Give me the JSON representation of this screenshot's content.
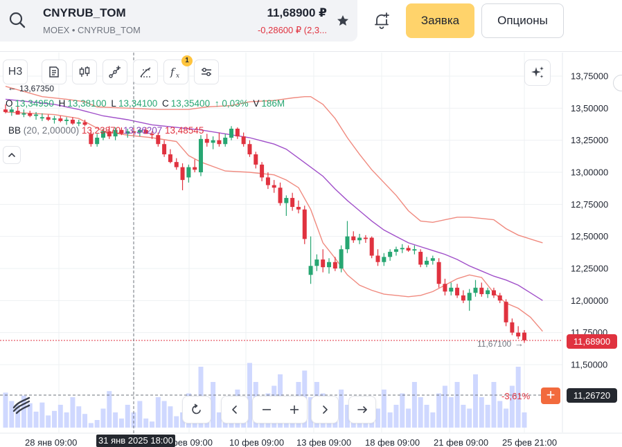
{
  "header": {
    "symbol": "CNYRUB_TOM",
    "exchange": "MOEX • CNYRUB_TOM",
    "price": "11,68900 ₽",
    "change": "-0,28600 ₽ (2,3...",
    "order_label": "Заявка",
    "options_label": "Опционы",
    "icons": [
      "search-icon",
      "star-icon",
      "bell-plus-icon"
    ]
  },
  "toolbar": {
    "interval_label": "Н3",
    "indicator_badge": "1",
    "icons": [
      "chart-type-icon",
      "candles-icon",
      "line-tool-icon",
      "fib-tool-icon",
      "fx-icon",
      "settings-sliders-icon",
      "sparkle-icon"
    ]
  },
  "legend": {
    "open_label": "O",
    "open": "13,34950",
    "high_label": "H",
    "high": "13,38100",
    "low_label": "L",
    "low": "13,34100",
    "close_label": "C",
    "close": "13,35400",
    "change": "↑ 0,03%",
    "volume_label": "V",
    "volume": "186M",
    "bb_name": "BB",
    "bb_params": "(20, 2,00000)",
    "bb_lower": "13,23870",
    "bb_middle": "13,36207",
    "bb_upper": "13,48545"
  },
  "price_axis": {
    "labels": [
      "13,75000",
      "13,50000",
      "13,25000",
      "13,00000",
      "12,75000",
      "12,50000",
      "12,25000",
      "12,00000",
      "11,75000",
      "11,50000"
    ],
    "last_price": "11,68900",
    "crosshair_price": "11,26720",
    "high_marker": "13,67350",
    "reference_price": "11,67100",
    "change_pct": "-3,61%"
  },
  "time_axis": {
    "labels": [
      "28 янв 09:00",
      "фев 09:00",
      "10 фев 09:00",
      "13 фев 09:00",
      "18 фев 09:00",
      "21 фев 09:00",
      "25 фев 21:00"
    ],
    "crosshair_time": "31 янв 2025 18:00"
  },
  "colors": {
    "up": "#27a672",
    "down": "#e0323f",
    "bb_band": "#f08a7f",
    "bb_mid": "#a04fc9",
    "volume": "#cfd8ff",
    "accent": "#ffd36b"
  },
  "chart_data": {
    "type": "candlestick",
    "ylim": [
      11.25,
      13.85
    ],
    "candles": [
      {
        "o": 13.49,
        "h": 13.53,
        "l": 13.46,
        "c": 13.47
      },
      {
        "o": 13.47,
        "h": 13.51,
        "l": 13.44,
        "c": 13.49
      },
      {
        "o": 13.48,
        "h": 13.52,
        "l": 13.45,
        "c": 13.45
      },
      {
        "o": 13.45,
        "h": 13.49,
        "l": 13.43,
        "c": 13.46
      },
      {
        "o": 13.46,
        "h": 13.48,
        "l": 13.43,
        "c": 13.44
      },
      {
        "o": 13.44,
        "h": 13.47,
        "l": 13.41,
        "c": 13.45
      },
      {
        "o": 13.42,
        "h": 13.46,
        "l": 13.4,
        "c": 13.43
      },
      {
        "o": 13.43,
        "h": 13.45,
        "l": 13.4,
        "c": 13.41
      },
      {
        "o": 13.41,
        "h": 13.44,
        "l": 13.38,
        "c": 13.42
      },
      {
        "o": 13.42,
        "h": 13.44,
        "l": 13.39,
        "c": 13.4
      },
      {
        "o": 13.4,
        "h": 13.43,
        "l": 13.37,
        "c": 13.41
      },
      {
        "o": 13.41,
        "h": 13.43,
        "l": 13.37,
        "c": 13.38
      },
      {
        "o": 13.38,
        "h": 13.41,
        "l": 13.36,
        "c": 13.39
      },
      {
        "o": 13.39,
        "h": 13.41,
        "l": 13.36,
        "c": 13.37
      },
      {
        "o": 13.3,
        "h": 13.33,
        "l": 13.2,
        "c": 13.22
      },
      {
        "o": 13.22,
        "h": 13.3,
        "l": 13.2,
        "c": 13.27
      },
      {
        "o": 13.27,
        "h": 13.34,
        "l": 13.25,
        "c": 13.32
      },
      {
        "o": 13.32,
        "h": 13.36,
        "l": 13.26,
        "c": 13.28
      },
      {
        "o": 13.28,
        "h": 13.35,
        "l": 13.25,
        "c": 13.33
      },
      {
        "o": 13.33,
        "h": 13.35,
        "l": 13.29,
        "c": 13.3
      },
      {
        "o": 13.3,
        "h": 13.34,
        "l": 13.27,
        "c": 13.32
      },
      {
        "o": 13.32,
        "h": 13.35,
        "l": 13.29,
        "c": 13.31
      },
      {
        "o": 13.31,
        "h": 13.34,
        "l": 13.28,
        "c": 13.33
      },
      {
        "o": 13.33,
        "h": 13.35,
        "l": 13.3,
        "c": 13.3
      },
      {
        "o": 13.3,
        "h": 13.32,
        "l": 13.26,
        "c": 13.29
      },
      {
        "o": 13.29,
        "h": 13.31,
        "l": 13.2,
        "c": 13.22
      },
      {
        "o": 13.22,
        "h": 13.25,
        "l": 13.12,
        "c": 13.14
      },
      {
        "o": 13.14,
        "h": 13.18,
        "l": 13.07,
        "c": 13.08
      },
      {
        "o": 13.08,
        "h": 13.11,
        "l": 13.02,
        "c": 13.04
      },
      {
        "o": 13.04,
        "h": 13.07,
        "l": 12.86,
        "c": 12.94
      },
      {
        "o": 12.96,
        "h": 13.06,
        "l": 12.92,
        "c": 13.04
      },
      {
        "o": 13.04,
        "h": 13.1,
        "l": 13.0,
        "c": 13.02
      },
      {
        "o": 13.0,
        "h": 13.29,
        "l": 12.97,
        "c": 13.26
      },
      {
        "o": 13.26,
        "h": 13.3,
        "l": 13.2,
        "c": 13.23
      },
      {
        "o": 13.23,
        "h": 13.28,
        "l": 13.18,
        "c": 13.25
      },
      {
        "o": 13.25,
        "h": 13.31,
        "l": 13.2,
        "c": 13.22
      },
      {
        "o": 13.22,
        "h": 13.3,
        "l": 13.2,
        "c": 13.27
      },
      {
        "o": 13.27,
        "h": 13.36,
        "l": 13.25,
        "c": 13.34
      },
      {
        "o": 13.34,
        "h": 13.35,
        "l": 13.26,
        "c": 13.28
      },
      {
        "o": 13.28,
        "h": 13.31,
        "l": 13.2,
        "c": 13.22
      },
      {
        "o": 13.22,
        "h": 13.25,
        "l": 13.12,
        "c": 13.14
      },
      {
        "o": 13.14,
        "h": 13.16,
        "l": 13.03,
        "c": 13.06
      },
      {
        "o": 13.06,
        "h": 13.08,
        "l": 12.93,
        "c": 12.96
      },
      {
        "o": 12.96,
        "h": 13.0,
        "l": 12.87,
        "c": 12.9
      },
      {
        "o": 12.9,
        "h": 12.94,
        "l": 12.84,
        "c": 12.88
      },
      {
        "o": 12.88,
        "h": 12.92,
        "l": 12.74,
        "c": 12.76
      },
      {
        "o": 12.76,
        "h": 12.82,
        "l": 12.66,
        "c": 12.8
      },
      {
        "o": 12.8,
        "h": 12.84,
        "l": 12.7,
        "c": 12.73
      },
      {
        "o": 12.73,
        "h": 12.78,
        "l": 12.68,
        "c": 12.71
      },
      {
        "o": 12.71,
        "h": 12.74,
        "l": 12.44,
        "c": 12.48
      },
      {
        "o": 12.2,
        "h": 12.5,
        "l": 12.13,
        "c": 12.27
      },
      {
        "o": 12.27,
        "h": 12.36,
        "l": 12.23,
        "c": 12.32
      },
      {
        "o": 12.32,
        "h": 12.4,
        "l": 12.22,
        "c": 12.26
      },
      {
        "o": 12.26,
        "h": 12.33,
        "l": 12.21,
        "c": 12.3
      },
      {
        "o": 12.3,
        "h": 12.34,
        "l": 12.23,
        "c": 12.25
      },
      {
        "o": 12.25,
        "h": 12.43,
        "l": 12.22,
        "c": 12.4
      },
      {
        "o": 12.4,
        "h": 12.62,
        "l": 12.37,
        "c": 12.5
      },
      {
        "o": 12.5,
        "h": 12.54,
        "l": 12.45,
        "c": 12.47
      },
      {
        "o": 12.47,
        "h": 12.52,
        "l": 12.44,
        "c": 12.49
      },
      {
        "o": 12.49,
        "h": 12.51,
        "l": 12.45,
        "c": 12.48
      },
      {
        "o": 12.49,
        "h": 12.5,
        "l": 12.33,
        "c": 12.35
      },
      {
        "o": 12.35,
        "h": 12.4,
        "l": 12.27,
        "c": 12.3
      },
      {
        "o": 12.3,
        "h": 12.37,
        "l": 12.27,
        "c": 12.34
      },
      {
        "o": 12.34,
        "h": 12.4,
        "l": 12.31,
        "c": 12.38
      },
      {
        "o": 12.38,
        "h": 12.42,
        "l": 12.35,
        "c": 12.4
      },
      {
        "o": 12.4,
        "h": 12.44,
        "l": 12.37,
        "c": 12.41
      },
      {
        "o": 12.41,
        "h": 12.43,
        "l": 12.38,
        "c": 12.39
      },
      {
        "o": 12.39,
        "h": 12.43,
        "l": 12.36,
        "c": 12.4
      },
      {
        "o": 12.38,
        "h": 12.4,
        "l": 12.26,
        "c": 12.28
      },
      {
        "o": 12.28,
        "h": 12.34,
        "l": 12.26,
        "c": 12.31
      },
      {
        "o": 12.31,
        "h": 12.35,
        "l": 12.28,
        "c": 12.33
      },
      {
        "o": 12.3,
        "h": 12.33,
        "l": 12.1,
        "c": 12.13
      },
      {
        "o": 12.13,
        "h": 12.17,
        "l": 12.04,
        "c": 12.07
      },
      {
        "o": 12.07,
        "h": 12.14,
        "l": 12.04,
        "c": 12.1
      },
      {
        "o": 12.1,
        "h": 12.13,
        "l": 12.02,
        "c": 12.04
      },
      {
        "o": 12.04,
        "h": 12.08,
        "l": 11.98,
        "c": 12.0
      },
      {
        "o": 12.0,
        "h": 12.09,
        "l": 11.92,
        "c": 12.06
      },
      {
        "o": 12.06,
        "h": 12.16,
        "l": 12.03,
        "c": 12.1
      },
      {
        "o": 12.1,
        "h": 12.14,
        "l": 12.03,
        "c": 12.05
      },
      {
        "o": 12.05,
        "h": 12.1,
        "l": 12.02,
        "c": 12.08
      },
      {
        "o": 12.08,
        "h": 12.1,
        "l": 12.02,
        "c": 12.04
      },
      {
        "o": 12.04,
        "h": 12.06,
        "l": 11.98,
        "c": 12.0
      },
      {
        "o": 11.99,
        "h": 12.01,
        "l": 11.8,
        "c": 11.83
      },
      {
        "o": 11.83,
        "h": 11.86,
        "l": 11.73,
        "c": 11.75
      },
      {
        "o": 11.75,
        "h": 11.8,
        "l": 11.7,
        "c": 11.72
      },
      {
        "o": 11.75,
        "h": 11.77,
        "l": 11.67,
        "c": 11.69
      }
    ],
    "volume_relative": [
      0.46,
      0.35,
      0.3,
      0.42,
      0.32,
      0.21,
      0.33,
      0.16,
      0.22,
      0.3,
      0.2,
      0.4,
      0.28,
      0.18,
      0.06,
      0.1,
      0.25,
      0.48,
      0.2,
      0.12,
      0.3,
      0.2,
      0.35,
      0.12,
      0.08,
      0.4,
      0.35,
      0.28,
      0.15,
      0.2,
      0.45,
      0.25,
      0.8,
      0.3,
      0.6,
      0.2,
      0.25,
      0.4,
      0.5,
      0.3,
      0.85,
      0.6,
      0.3,
      0.45,
      0.55,
      0.7,
      0.4,
      0.25,
      0.6,
      0.75,
      0.4,
      0.6,
      0.45,
      0.25,
      0.35,
      0.5,
      0.3,
      0.15,
      0.25,
      0.4,
      0.35,
      0.25,
      0.5,
      0.2,
      0.3,
      0.45,
      0.25,
      0.6,
      0.4,
      0.3,
      0.2,
      0.45,
      0.55,
      0.4,
      0.6,
      0.3,
      0.25,
      0.7,
      0.4,
      0.3,
      0.6,
      0.35,
      0.25,
      0.55,
      0.8,
      0.2
    ],
    "bollinger": {
      "upper_pts": [
        [
          0,
          13.67
        ],
        [
          3,
          13.63
        ],
        [
          6,
          13.59
        ],
        [
          10,
          13.57
        ],
        [
          13,
          13.55
        ],
        [
          15,
          13.51
        ],
        [
          20,
          13.5
        ],
        [
          25,
          13.49
        ],
        [
          30,
          13.49
        ],
        [
          33,
          13.51
        ],
        [
          37,
          13.52
        ],
        [
          40,
          13.55
        ],
        [
          44,
          13.56
        ],
        [
          47,
          13.58
        ],
        [
          49,
          13.59
        ],
        [
          50,
          13.59
        ],
        [
          52,
          13.53
        ],
        [
          54,
          13.42
        ],
        [
          56,
          13.27
        ],
        [
          58,
          13.14
        ],
        [
          60,
          13.02
        ],
        [
          62,
          12.92
        ],
        [
          64,
          12.82
        ],
        [
          66,
          12.7
        ],
        [
          68,
          12.62
        ],
        [
          70,
          12.61
        ],
        [
          72,
          12.63
        ],
        [
          74,
          12.65
        ],
        [
          76,
          12.65
        ],
        [
          78,
          12.64
        ],
        [
          80,
          12.63
        ],
        [
          82,
          12.56
        ],
        [
          84,
          12.51
        ],
        [
          86,
          12.48
        ],
        [
          88,
          12.45
        ]
      ],
      "middle_pts": [
        [
          0,
          13.57
        ],
        [
          4,
          13.55
        ],
        [
          8,
          13.53
        ],
        [
          12,
          13.49
        ],
        [
          16,
          13.44
        ],
        [
          20,
          13.41
        ],
        [
          24,
          13.37
        ],
        [
          28,
          13.35
        ],
        [
          32,
          13.33
        ],
        [
          36,
          13.3
        ],
        [
          40,
          13.27
        ],
        [
          44,
          13.22
        ],
        [
          46,
          13.18
        ],
        [
          48,
          13.11
        ],
        [
          50,
          13.04
        ],
        [
          52,
          12.97
        ],
        [
          54,
          12.87
        ],
        [
          56,
          12.78
        ],
        [
          58,
          12.7
        ],
        [
          60,
          12.62
        ],
        [
          62,
          12.55
        ],
        [
          64,
          12.5
        ],
        [
          66,
          12.45
        ],
        [
          68,
          12.42
        ],
        [
          70,
          12.39
        ],
        [
          72,
          12.36
        ],
        [
          74,
          12.32
        ],
        [
          76,
          12.27
        ],
        [
          78,
          12.23
        ],
        [
          80,
          12.19
        ],
        [
          82,
          12.16
        ],
        [
          84,
          12.12
        ],
        [
          86,
          12.06
        ],
        [
          88,
          12.0
        ]
      ],
      "lower_pts": [
        [
          0,
          13.47
        ],
        [
          4,
          13.46
        ],
        [
          8,
          13.45
        ],
        [
          12,
          13.42
        ],
        [
          16,
          13.32
        ],
        [
          20,
          13.29
        ],
        [
          24,
          13.27
        ],
        [
          28,
          13.24
        ],
        [
          30,
          13.13
        ],
        [
          32,
          13.08
        ],
        [
          36,
          13.01
        ],
        [
          40,
          13.0
        ],
        [
          44,
          12.98
        ],
        [
          46,
          12.94
        ],
        [
          48,
          12.88
        ],
        [
          50,
          12.71
        ],
        [
          52,
          12.45
        ],
        [
          54,
          12.33
        ],
        [
          56,
          12.2
        ],
        [
          58,
          12.12
        ],
        [
          60,
          12.08
        ],
        [
          62,
          12.05
        ],
        [
          64,
          12.04
        ],
        [
          66,
          12.03
        ],
        [
          68,
          12.04
        ],
        [
          70,
          12.07
        ],
        [
          72,
          12.12
        ],
        [
          74,
          12.17
        ],
        [
          76,
          12.2
        ],
        [
          78,
          12.18
        ],
        [
          80,
          12.06
        ],
        [
          82,
          11.98
        ],
        [
          84,
          11.94
        ],
        [
          86,
          11.87
        ],
        [
          88,
          11.76
        ]
      ]
    }
  }
}
